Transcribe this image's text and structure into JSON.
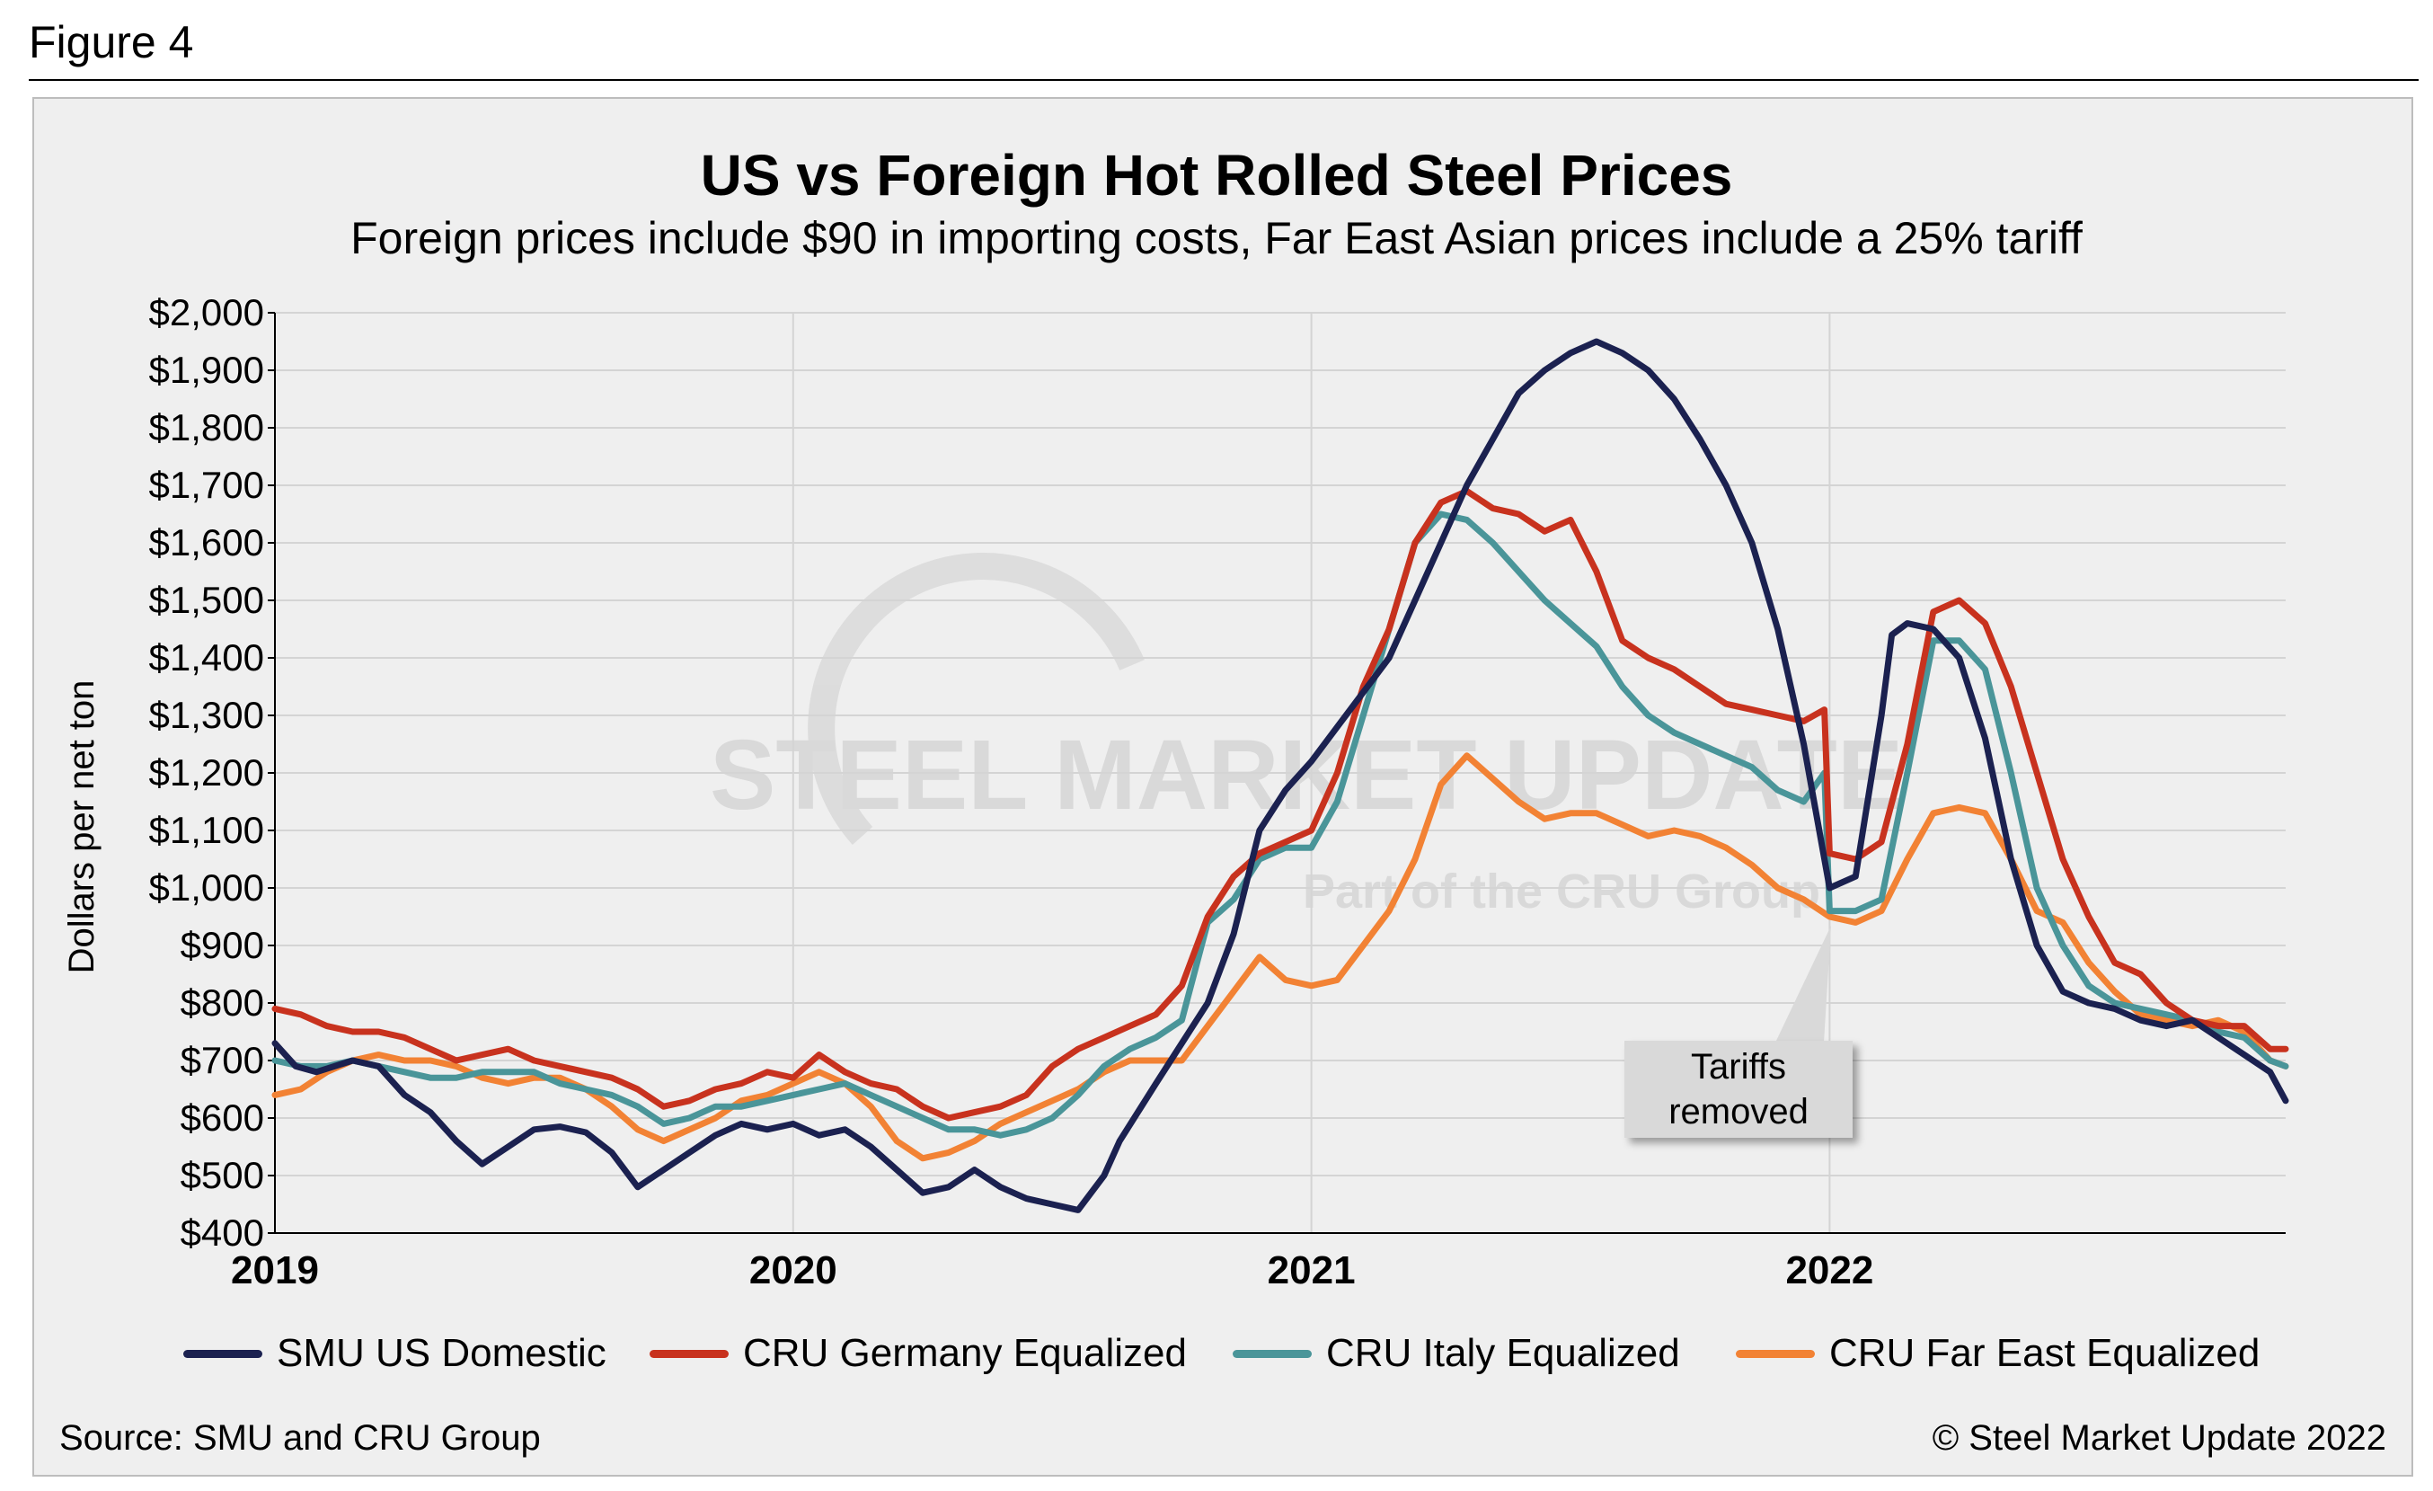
{
  "figure_label": "Figure 4",
  "source": "Source: SMU and CRU Group",
  "copyright": "© Steel Market Update 2022",
  "watermark": "STEEL MARKET UPDATE — Part of the CRU Group",
  "colors": {
    "smu_us": "#1b2150",
    "germany": "#c8321e",
    "italy": "#4a9599",
    "far_east": "#f28234",
    "panel": "#efefef",
    "grid": "#d4d4d4"
  },
  "chart_data": {
    "type": "line",
    "title": "US vs Foreign Hot Rolled Steel Prices",
    "subtitle": "Foreign prices include $90 in importing costs, Far East Asian prices include a 25% tariff",
    "ylabel": "Dollars per net ton",
    "xlabel": "",
    "ylim": [
      400,
      2000
    ],
    "xlim": [
      2019.0,
      2022.88
    ],
    "y_ticks": [
      400,
      500,
      600,
      700,
      800,
      900,
      1000,
      1100,
      1200,
      1300,
      1400,
      1500,
      1600,
      1700,
      1800,
      1900,
      2000
    ],
    "y_tick_labels": [
      "$400",
      "$500",
      "$600",
      "$700",
      "$800",
      "$900",
      "$1,000",
      "$1,100",
      "$1,200",
      "$1,300",
      "$1,400",
      "$1,500",
      "$1,600",
      "$1,700",
      "$1,800",
      "$1,900",
      "$2,000"
    ],
    "x_ticks": [
      2019,
      2020,
      2021,
      2022
    ],
    "x_tick_labels": [
      "2019",
      "2020",
      "2021",
      "2022"
    ],
    "grid": true,
    "legend_position": "bottom",
    "annotation": {
      "text_line1": "Tariffs",
      "text_line2": "removed",
      "x": 2022.0,
      "y": 960
    },
    "series": [
      {
        "name": "SMU US Domestic",
        "color": "#1b2150",
        "x": [
          2019.0,
          2019.04,
          2019.08,
          2019.15,
          2019.2,
          2019.25,
          2019.3,
          2019.35,
          2019.4,
          2019.45,
          2019.5,
          2019.55,
          2019.6,
          2019.65,
          2019.7,
          2019.75,
          2019.8,
          2019.85,
          2019.9,
          2019.95,
          2020.0,
          2020.05,
          2020.1,
          2020.15,
          2020.2,
          2020.25,
          2020.3,
          2020.35,
          2020.4,
          2020.45,
          2020.5,
          2020.55,
          2020.6,
          2020.63,
          2020.7,
          2020.75,
          2020.8,
          2020.85,
          2020.9,
          2020.95,
          2021.0,
          2021.05,
          2021.1,
          2021.15,
          2021.2,
          2021.25,
          2021.3,
          2021.35,
          2021.4,
          2021.45,
          2021.5,
          2021.55,
          2021.6,
          2021.65,
          2021.7,
          2021.75,
          2021.8,
          2021.85,
          2021.9,
          2021.95,
          2022.0,
          2022.05,
          2022.1,
          2022.12,
          2022.15,
          2022.2,
          2022.25,
          2022.3,
          2022.35,
          2022.4,
          2022.45,
          2022.5,
          2022.55,
          2022.6,
          2022.65,
          2022.7,
          2022.75,
          2022.8,
          2022.85,
          2022.88
        ],
        "y": [
          730,
          690,
          680,
          700,
          690,
          640,
          610,
          560,
          520,
          550,
          580,
          585,
          575,
          540,
          480,
          510,
          540,
          570,
          590,
          580,
          590,
          570,
          580,
          550,
          510,
          470,
          480,
          510,
          480,
          460,
          450,
          440,
          500,
          560,
          660,
          730,
          800,
          920,
          1100,
          1170,
          1220,
          1280,
          1340,
          1400,
          1500,
          1600,
          1700,
          1780,
          1860,
          1900,
          1930,
          1950,
          1930,
          1900,
          1850,
          1780,
          1700,
          1600,
          1450,
          1250,
          1000,
          1020,
          1300,
          1440,
          1460,
          1450,
          1400,
          1260,
          1050,
          900,
          820,
          800,
          790,
          770,
          760,
          770,
          740,
          710,
          680,
          630
        ]
      },
      {
        "name": "CRU Germany Equalized",
        "color": "#c8321e",
        "x": [
          2019.0,
          2019.05,
          2019.1,
          2019.15,
          2019.2,
          2019.25,
          2019.3,
          2019.35,
          2019.4,
          2019.45,
          2019.5,
          2019.55,
          2019.6,
          2019.65,
          2019.7,
          2019.75,
          2019.8,
          2019.85,
          2019.9,
          2019.95,
          2020.0,
          2020.05,
          2020.1,
          2020.15,
          2020.2,
          2020.25,
          2020.3,
          2020.35,
          2020.4,
          2020.45,
          2020.5,
          2020.55,
          2020.6,
          2020.65,
          2020.7,
          2020.75,
          2020.8,
          2020.85,
          2020.9,
          2020.95,
          2021.0,
          2021.05,
          2021.1,
          2021.15,
          2021.2,
          2021.25,
          2021.3,
          2021.35,
          2021.4,
          2021.45,
          2021.5,
          2021.55,
          2021.6,
          2021.65,
          2021.7,
          2021.75,
          2021.8,
          2021.85,
          2021.9,
          2021.95,
          2021.99,
          2022.0,
          2022.05,
          2022.1,
          2022.15,
          2022.2,
          2022.25,
          2022.3,
          2022.35,
          2022.4,
          2022.45,
          2022.5,
          2022.55,
          2022.6,
          2022.65,
          2022.7,
          2022.75,
          2022.8,
          2022.85,
          2022.88
        ],
        "y": [
          790,
          780,
          760,
          750,
          750,
          740,
          720,
          700,
          710,
          720,
          700,
          690,
          680,
          670,
          650,
          620,
          630,
          650,
          660,
          680,
          670,
          710,
          680,
          660,
          650,
          620,
          600,
          610,
          620,
          640,
          690,
          720,
          740,
          760,
          780,
          830,
          950,
          1020,
          1060,
          1080,
          1100,
          1200,
          1350,
          1450,
          1600,
          1670,
          1690,
          1660,
          1650,
          1620,
          1640,
          1550,
          1430,
          1400,
          1380,
          1350,
          1320,
          1310,
          1300,
          1290,
          1310,
          1060,
          1050,
          1080,
          1250,
          1480,
          1500,
          1460,
          1350,
          1200,
          1050,
          950,
          870,
          850,
          800,
          770,
          760,
          760,
          720,
          720
        ]
      },
      {
        "name": "CRU Italy Equalized",
        "color": "#4a9599",
        "x": [
          2019.0,
          2019.05,
          2019.1,
          2019.15,
          2019.2,
          2019.25,
          2019.3,
          2019.35,
          2019.4,
          2019.45,
          2019.5,
          2019.55,
          2019.6,
          2019.65,
          2019.7,
          2019.75,
          2019.8,
          2019.85,
          2019.9,
          2019.95,
          2020.0,
          2020.05,
          2020.1,
          2020.15,
          2020.2,
          2020.25,
          2020.3,
          2020.35,
          2020.4,
          2020.45,
          2020.5,
          2020.55,
          2020.6,
          2020.65,
          2020.7,
          2020.75,
          2020.8,
          2020.85,
          2020.9,
          2020.95,
          2021.0,
          2021.05,
          2021.1,
          2021.15,
          2021.2,
          2021.25,
          2021.3,
          2021.35,
          2021.4,
          2021.45,
          2021.5,
          2021.55,
          2021.6,
          2021.65,
          2021.7,
          2021.75,
          2021.8,
          2021.85,
          2021.9,
          2021.95,
          2021.99,
          2022.0,
          2022.05,
          2022.1,
          2022.15,
          2022.2,
          2022.25,
          2022.3,
          2022.35,
          2022.4,
          2022.45,
          2022.5,
          2022.55,
          2022.6,
          2022.65,
          2022.7,
          2022.75,
          2022.8,
          2022.85,
          2022.88
        ],
        "y": [
          700,
          690,
          690,
          700,
          690,
          680,
          670,
          670,
          680,
          680,
          680,
          660,
          650,
          640,
          620,
          590,
          600,
          620,
          620,
          630,
          640,
          650,
          660,
          640,
          620,
          600,
          580,
          580,
          570,
          580,
          600,
          640,
          690,
          720,
          740,
          770,
          940,
          980,
          1050,
          1070,
          1070,
          1150,
          1300,
          1450,
          1600,
          1650,
          1640,
          1600,
          1550,
          1500,
          1460,
          1420,
          1350,
          1300,
          1270,
          1250,
          1230,
          1210,
          1170,
          1150,
          1200,
          960,
          960,
          980,
          1200,
          1430,
          1430,
          1380,
          1200,
          1000,
          900,
          830,
          800,
          790,
          780,
          770,
          750,
          740,
          700,
          690
        ]
      },
      {
        "name": "CRU Far East Equalized",
        "color": "#f28234",
        "x": [
          2019.0,
          2019.05,
          2019.1,
          2019.15,
          2019.2,
          2019.25,
          2019.3,
          2019.35,
          2019.4,
          2019.45,
          2019.5,
          2019.55,
          2019.6,
          2019.65,
          2019.7,
          2019.75,
          2019.8,
          2019.85,
          2019.9,
          2019.95,
          2020.0,
          2020.05,
          2020.1,
          2020.15,
          2020.2,
          2020.25,
          2020.3,
          2020.35,
          2020.4,
          2020.45,
          2020.5,
          2020.55,
          2020.6,
          2020.65,
          2020.7,
          2020.75,
          2020.8,
          2020.85,
          2020.9,
          2020.95,
          2021.0,
          2021.05,
          2021.1,
          2021.15,
          2021.2,
          2021.25,
          2021.3,
          2021.35,
          2021.4,
          2021.45,
          2021.5,
          2021.55,
          2021.6,
          2021.65,
          2021.7,
          2021.75,
          2021.8,
          2021.85,
          2021.9,
          2021.95,
          2022.0,
          2022.05,
          2022.1,
          2022.15,
          2022.2,
          2022.25,
          2022.3,
          2022.35,
          2022.4,
          2022.45,
          2022.5,
          2022.55,
          2022.6,
          2022.65,
          2022.7,
          2022.75,
          2022.8,
          2022.85,
          2022.88
        ],
        "y": [
          640,
          650,
          680,
          700,
          710,
          700,
          700,
          690,
          670,
          660,
          670,
          670,
          650,
          620,
          580,
          560,
          580,
          600,
          630,
          640,
          660,
          680,
          660,
          620,
          560,
          530,
          540,
          560,
          590,
          610,
          630,
          650,
          680,
          700,
          700,
          700,
          760,
          820,
          880,
          840,
          830,
          840,
          900,
          960,
          1050,
          1180,
          1230,
          1190,
          1150,
          1120,
          1130,
          1130,
          1110,
          1090,
          1100,
          1090,
          1070,
          1040,
          1000,
          980,
          950,
          940,
          960,
          1050,
          1130,
          1140,
          1130,
          1050,
          960,
          940,
          870,
          820,
          780,
          770,
          760,
          770,
          750,
          700,
          690
        ]
      }
    ]
  }
}
